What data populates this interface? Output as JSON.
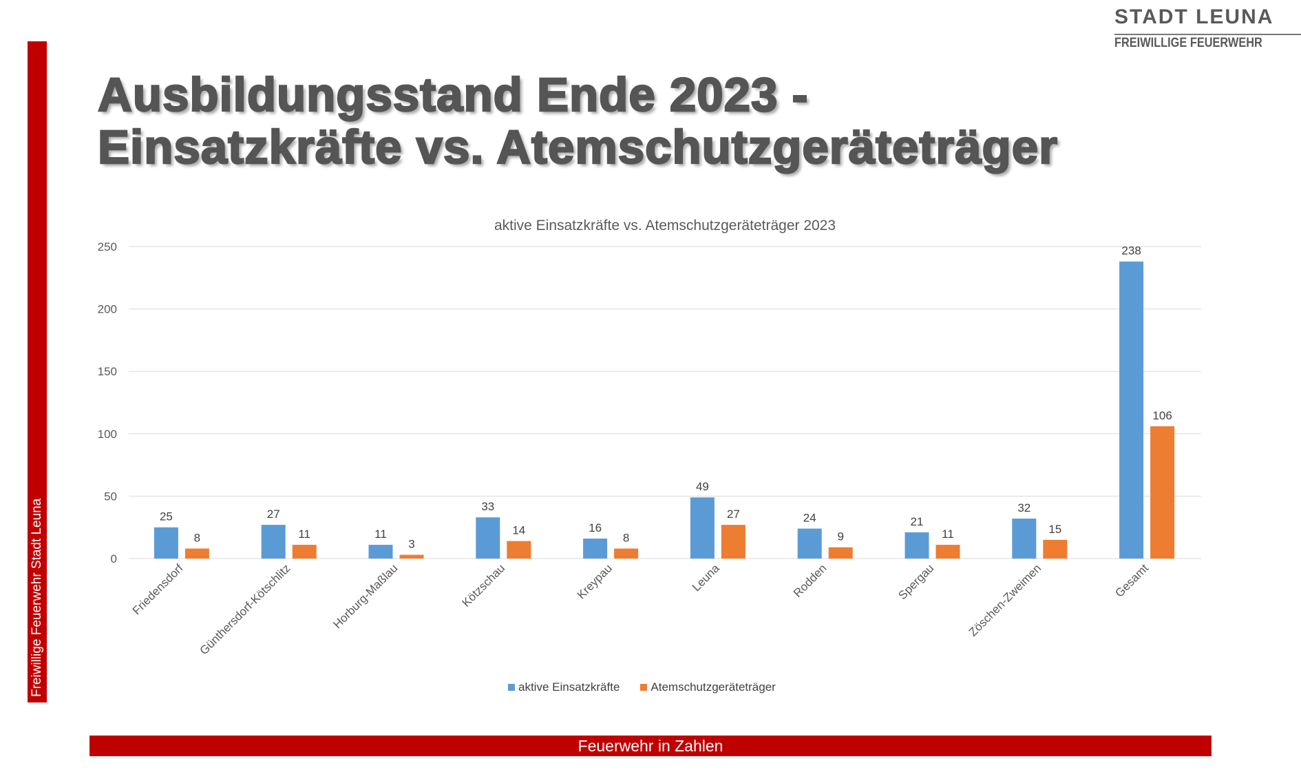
{
  "logo": {
    "title": "STADT LEUNA",
    "subtitle": "FREIWILLIGE FEUERWEHR"
  },
  "page_title": {
    "line1": "Ausbildungsstand Ende 2023 -",
    "line2": "Einsatzkräfte vs. Atemschutzgeräteträger"
  },
  "sidebar_text": "Freiwillige Feuerwehr Stadt Leuna",
  "footer_text": "Feuerwehr in Zahlen",
  "chart_data": {
    "type": "bar",
    "title": "aktive Einsatzkräfte vs. Atemschutzgeräteträger 2023",
    "xlabel": "",
    "ylabel": "",
    "ylim": [
      0,
      250
    ],
    "yticks": [
      0,
      50,
      100,
      150,
      200,
      250
    ],
    "grid": true,
    "legend_position": "bottom",
    "categories": [
      "Friedensdorf",
      "Günthersdorf-Kötschlitz",
      "Horburg-Maßlau",
      "Kötzschau",
      "Kreypau",
      "Leuna",
      "Rodden",
      "Spergau",
      "Zöschen-Zweimen",
      "Gesamt"
    ],
    "series": [
      {
        "name": "aktive Einsatzkräfte",
        "color": "#5b9bd5",
        "values": [
          25,
          27,
          11,
          33,
          16,
          49,
          24,
          21,
          32,
          238
        ]
      },
      {
        "name": "Atemschutzgeräteträger",
        "color": "#ed7d31",
        "values": [
          8,
          11,
          3,
          14,
          8,
          27,
          9,
          11,
          15,
          106
        ]
      }
    ]
  }
}
